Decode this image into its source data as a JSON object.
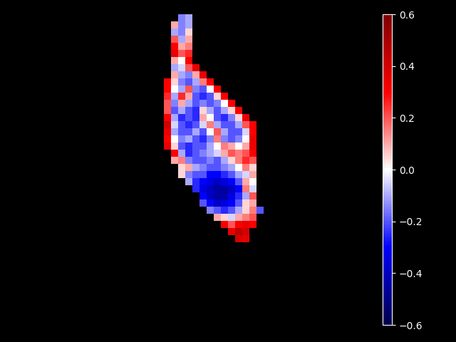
{
  "chart_data": {
    "type": "heatmap",
    "colorbar": {
      "range": [
        -0.6,
        0.6
      ],
      "ticks": [
        {
          "value": -0.6,
          "label": "−0.6"
        },
        {
          "value": -0.4,
          "label": "−0.4"
        },
        {
          "value": -0.2,
          "label": "−0.2"
        },
        {
          "value": 0.0,
          "label": "0.0"
        },
        0.2,
        0.4,
        0.6
      ]
    },
    "tick_labels": false,
    "cells": [
      [
        null,
        null,
        -0.15,
        -0.1,
        null,
        null,
        null,
        null,
        null,
        null,
        null,
        null,
        null,
        null
      ],
      [
        null,
        0.1,
        -0.15,
        -0.1,
        null,
        null,
        null,
        null,
        null,
        null,
        null,
        null,
        null,
        null
      ],
      [
        null,
        -0.1,
        -0.15,
        0.05,
        null,
        null,
        null,
        null,
        null,
        null,
        null,
        null,
        null,
        null
      ],
      [
        null,
        0.2,
        -0.1,
        0.1,
        null,
        null,
        null,
        null,
        null,
        null,
        null,
        null,
        null,
        null
      ],
      [
        null,
        0.3,
        0.1,
        0.15,
        null,
        null,
        null,
        null,
        null,
        null,
        null,
        null,
        null,
        null
      ],
      [
        null,
        0.35,
        0.2,
        0.25,
        null,
        null,
        null,
        null,
        null,
        null,
        null,
        null,
        null,
        null
      ],
      [
        null,
        0.1,
        0.0,
        0.3,
        null,
        null,
        null,
        null,
        null,
        null,
        null,
        null,
        null,
        null
      ],
      [
        null,
        -0.1,
        -0.05,
        0.2,
        0.35,
        null,
        null,
        null,
        null,
        null,
        null,
        null,
        null,
        null
      ],
      [
        null,
        0.1,
        -0.1,
        -0.15,
        0.1,
        0.35,
        null,
        null,
        null,
        null,
        null,
        null,
        null,
        null
      ],
      [
        0.3,
        0.05,
        -0.15,
        -0.2,
        -0.1,
        0.15,
        0.3,
        null,
        null,
        null,
        null,
        null,
        null,
        null
      ],
      [
        0.3,
        0.0,
        -0.1,
        0.2,
        -0.15,
        -0.2,
        0.0,
        0.3,
        null,
        null,
        null,
        null,
        null,
        null
      ],
      [
        0.25,
        -0.1,
        0.25,
        0.1,
        -0.2,
        -0.25,
        -0.2,
        0.05,
        0.3,
        null,
        null,
        null,
        null,
        null
      ],
      [
        0.2,
        -0.15,
        0.1,
        -0.1,
        -0.2,
        -0.15,
        -0.2,
        -0.15,
        0.0,
        0.3,
        null,
        null,
        null,
        null
      ],
      [
        0.2,
        -0.2,
        -0.1,
        -0.2,
        -0.25,
        0.05,
        -0.1,
        -0.2,
        -0.1,
        0.05,
        0.3,
        null,
        null,
        null
      ],
      [
        0.3,
        -0.1,
        -0.25,
        -0.2,
        -0.25,
        0.1,
        0.0,
        -0.2,
        -0.25,
        -0.15,
        0.05,
        0.35,
        null,
        null
      ],
      [
        0.4,
        -0.05,
        -0.2,
        -0.25,
        -0.2,
        -0.05,
        0.15,
        -0.1,
        -0.2,
        -0.2,
        -0.1,
        0.2,
        0.3,
        null
      ],
      [
        0.35,
        -0.1,
        -0.2,
        -0.2,
        -0.1,
        -0.2,
        0.0,
        0.2,
        -0.1,
        -0.2,
        -0.2,
        -0.05,
        0.3,
        null
      ],
      [
        0.3,
        0.0,
        -0.15,
        -0.1,
        -0.2,
        -0.25,
        -0.15,
        0.15,
        -0.15,
        -0.2,
        -0.15,
        0.0,
        0.35,
        null
      ],
      [
        0.35,
        0.05,
        -0.2,
        -0.25,
        -0.2,
        -0.2,
        -0.1,
        0.0,
        0.15,
        0.1,
        0.0,
        0.1,
        0.35,
        null
      ],
      [
        null,
        0.3,
        -0.1,
        -0.25,
        -0.2,
        -0.15,
        -0.1,
        -0.05,
        0.1,
        0.2,
        0.15,
        0.2,
        0.3,
        null
      ],
      [
        null,
        0.1,
        0.15,
        -0.15,
        -0.2,
        -0.2,
        -0.15,
        -0.2,
        -0.1,
        0.05,
        0.15,
        0.25,
        0.2,
        null
      ],
      [
        null,
        null,
        0.05,
        0.1,
        -0.1,
        -0.15,
        -0.2,
        -0.2,
        -0.15,
        -0.1,
        0.0,
        0.15,
        0.05,
        null
      ],
      [
        null,
        null,
        0.05,
        -0.15,
        -0.2,
        -0.2,
        -0.3,
        -0.3,
        -0.25,
        -0.2,
        -0.1,
        -0.05,
        0.1,
        null
      ],
      [
        null,
        null,
        null,
        -0.1,
        -0.25,
        -0.3,
        -0.35,
        -0.4,
        -0.35,
        -0.3,
        -0.2,
        0.1,
        0.0,
        null
      ],
      [
        null,
        null,
        null,
        null,
        -0.25,
        -0.35,
        -0.4,
        -0.45,
        -0.45,
        -0.4,
        -0.3,
        0.15,
        -0.05,
        null
      ],
      [
        null,
        null,
        null,
        null,
        null,
        -0.3,
        -0.4,
        -0.45,
        -0.45,
        -0.35,
        -0.25,
        -0.1,
        0.2,
        null
      ],
      [
        null,
        null,
        null,
        null,
        null,
        -0.2,
        -0.3,
        -0.4,
        -0.35,
        -0.3,
        -0.2,
        0.05,
        0.1,
        null
      ],
      [
        null,
        null,
        null,
        null,
        null,
        null,
        -0.15,
        -0.2,
        -0.25,
        -0.2,
        -0.1,
        0.05,
        0.15,
        -0.2
      ],
      [
        null,
        null,
        null,
        null,
        null,
        null,
        null,
        0.1,
        0.05,
        -0.05,
        0.1,
        0.15,
        0.2,
        null
      ],
      [
        null,
        null,
        null,
        null,
        null,
        null,
        null,
        null,
        0.3,
        0.2,
        0.3,
        0.35,
        0.3,
        null
      ],
      [
        null,
        null,
        null,
        null,
        null,
        null,
        null,
        null,
        null,
        0.35,
        0.45,
        0.4,
        null,
        null
      ],
      [
        null,
        null,
        null,
        null,
        null,
        null,
        null,
        null,
        null,
        null,
        0.4,
        0.35,
        null,
        null
      ]
    ]
  }
}
